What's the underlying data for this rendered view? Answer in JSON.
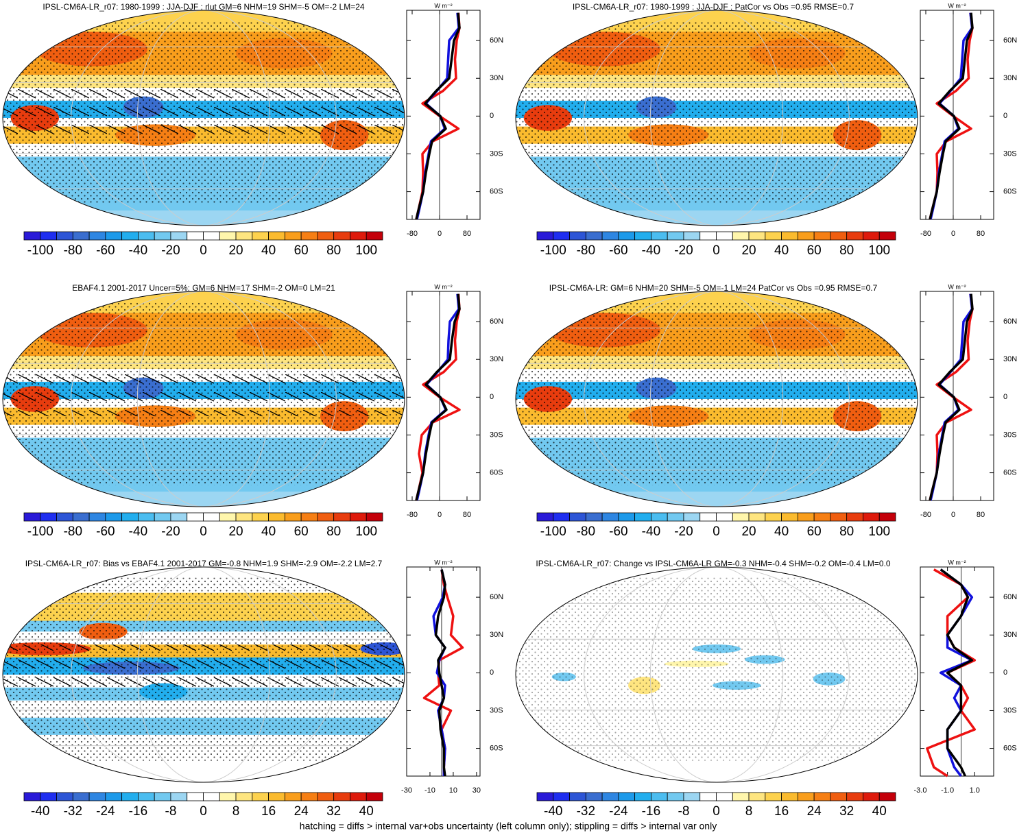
{
  "colors": [
    "#2a1ad8",
    "#1f2ef0",
    "#2d55d6",
    "#3a6ed0",
    "#2e86e2",
    "#1d9aea",
    "#22aeee",
    "#4bbdf0",
    "#72c9f0",
    "#9cd6f2",
    "#ffffff",
    "#ffffff",
    "#fff6ac",
    "#fee580",
    "#fdd24e",
    "#fbbb2e",
    "#f99e1c",
    "#f67f14",
    "#f05e10",
    "#e83c0e",
    "#de1a0c",
    "#c4000a"
  ],
  "note": "hatching = diffs > internal var+obs uncertainty (left column only); stippling = diffs > internal var only",
  "panels": [
    {
      "title": "IPSL-CM6A-LR_r07: 1980-1999 : JJA-DJF : rlut GM=6 NHM=19 SHM=-5 OM=-2 LM=24",
      "colorbar": {
        "clim": [
          -110,
          110
        ],
        "ticks": [
          -100,
          -80,
          -60,
          -40,
          -20,
          0,
          20,
          40,
          60,
          80,
          100
        ]
      },
      "profile": {
        "type": "line",
        "unit": "W m⁻²",
        "xlim": [
          -96,
          118
        ],
        "xticks": [
          -80,
          0,
          80
        ],
        "ylim": [
          -82,
          84
        ],
        "yticks": [
          {
            "value": 60,
            "label": "60N"
          },
          {
            "value": 30,
            "label": "30N"
          },
          0,
          {
            "value": -30,
            "label": "30S"
          },
          {
            "value": -60,
            "label": "60S"
          }
        ],
        "lat": [
          82,
          70,
          60,
          45,
          30,
          20,
          10,
          0,
          -10,
          -20,
          -30,
          -45,
          -60,
          -75,
          -82
        ],
        "series": [
          {
            "color": "#ee1111",
            "values": [
              55,
              58,
              50,
              45,
              48,
              10,
              -50,
              0,
              55,
              -20,
              -50,
              -48,
              -50,
              -62,
              -68
            ]
          },
          {
            "color": "#1111dd",
            "values": [
              52,
              56,
              28,
              25,
              22,
              -8,
              -40,
              2,
              15,
              -25,
              -32,
              -42,
              -48,
              -60,
              -66
            ]
          },
          {
            "color": "#000000",
            "values": [
              54,
              58,
              42,
              35,
              28,
              -10,
              -42,
              2,
              18,
              -22,
              -30,
              -40,
              -48,
              -62,
              -68
            ]
          }
        ]
      }
    },
    {
      "title": "IPSL-CM6A-LR_r07: 1980-1999 : JJA-DJF : PatCor vs Obs =0.95 RMSE=0.7",
      "colorbar": {
        "clim": [
          -110,
          110
        ],
        "ticks": [
          -100,
          -80,
          -60,
          -40,
          -20,
          0,
          20,
          40,
          60,
          80,
          100
        ]
      },
      "profile": {
        "type": "line",
        "unit": "W m⁻²",
        "xlim": [
          -96,
          118
        ],
        "xticks": [
          -80,
          0,
          80
        ],
        "ylim": [
          -82,
          84
        ],
        "yticks": [
          {
            "value": 60,
            "label": "60N"
          },
          {
            "value": 30,
            "label": "30N"
          },
          0,
          {
            "value": -30,
            "label": "30S"
          },
          {
            "value": -60,
            "label": "60S"
          }
        ],
        "lat": [
          82,
          70,
          60,
          45,
          30,
          20,
          10,
          0,
          -10,
          -20,
          -30,
          -45,
          -60,
          -75,
          -82
        ],
        "series": [
          {
            "color": "#ee1111",
            "values": [
              50,
              56,
              48,
              42,
              45,
              8,
              -48,
              0,
              52,
              -20,
              -48,
              -46,
              -48,
              -62,
              -68
            ]
          },
          {
            "color": "#1111dd",
            "values": [
              50,
              55,
              30,
              26,
              22,
              -8,
              -40,
              2,
              15,
              -25,
              -32,
              -42,
              -48,
              -60,
              -66
            ]
          },
          {
            "color": "#000000",
            "values": [
              52,
              56,
              40,
              34,
              28,
              -10,
              -42,
              2,
              18,
              -22,
              -30,
              -40,
              -48,
              -62,
              -68
            ]
          }
        ]
      }
    },
    {
      "title": "EBAF4.1 2001-2017 Uncer=5%: GM=6 NHM=17 SHM=-2 OM=0 LM=21",
      "colorbar": {
        "clim": [
          -110,
          110
        ],
        "ticks": [
          -100,
          -80,
          -60,
          -40,
          -20,
          0,
          20,
          40,
          60,
          80,
          100
        ]
      },
      "profile": {
        "type": "line",
        "unit": "W m⁻²",
        "xlim": [
          -96,
          118
        ],
        "xticks": [
          -80,
          0,
          80
        ],
        "ylim": [
          -82,
          84
        ],
        "yticks": [
          {
            "value": 60,
            "label": "60N"
          },
          {
            "value": 30,
            "label": "30N"
          },
          0,
          {
            "value": -30,
            "label": "30S"
          },
          {
            "value": -60,
            "label": "60S"
          }
        ],
        "lat": [
          82,
          70,
          60,
          45,
          30,
          20,
          10,
          0,
          -10,
          -20,
          -30,
          -45,
          -60,
          -75,
          -82
        ],
        "series": [
          {
            "color": "#ee1111",
            "values": [
              55,
              58,
              50,
              45,
              48,
              12,
              -48,
              0,
              58,
              -20,
              -52,
              -60,
              -50,
              -62,
              -68
            ]
          },
          {
            "color": "#1111dd",
            "values": [
              52,
              56,
              30,
              26,
              24,
              -6,
              -38,
              2,
              18,
              -24,
              -32,
              -42,
              -48,
              -60,
              -66
            ]
          },
          {
            "color": "#000000",
            "values": [
              54,
              58,
              44,
              36,
              30,
              -8,
              -40,
              2,
              20,
              -22,
              -30,
              -40,
              -48,
              -62,
              -68
            ]
          }
        ]
      }
    },
    {
      "title": "IPSL-CM6A-LR: GM=6 NHM=20 SHM=-5 OM=-1 LM=24 PatCor vs Obs =0.95 RMSE=0.7",
      "colorbar": {
        "clim": [
          -110,
          110
        ],
        "ticks": [
          -100,
          -80,
          -60,
          -40,
          -20,
          0,
          20,
          40,
          60,
          80,
          100
        ]
      },
      "profile": {
        "type": "line",
        "unit": "W m⁻²",
        "xlim": [
          -96,
          118
        ],
        "xticks": [
          -80,
          0,
          80
        ],
        "ylim": [
          -82,
          84
        ],
        "yticks": [
          {
            "value": 60,
            "label": "60N"
          },
          {
            "value": 30,
            "label": "30N"
          },
          0,
          {
            "value": -30,
            "label": "30S"
          },
          {
            "value": -60,
            "label": "60S"
          }
        ],
        "lat": [
          82,
          70,
          60,
          45,
          30,
          20,
          10,
          0,
          -10,
          -20,
          -30,
          -45,
          -60,
          -75,
          -82
        ],
        "series": [
          {
            "color": "#ee1111",
            "values": [
              50,
              56,
              48,
              42,
              45,
              8,
              -48,
              0,
              52,
              -20,
              -48,
              -46,
              -48,
              -62,
              -68
            ]
          },
          {
            "color": "#1111dd",
            "values": [
              50,
              55,
              30,
              26,
              22,
              -8,
              -40,
              2,
              15,
              -25,
              -32,
              -42,
              -48,
              -60,
              -66
            ]
          },
          {
            "color": "#000000",
            "values": [
              52,
              56,
              40,
              34,
              28,
              -10,
              -42,
              2,
              18,
              -22,
              -30,
              -40,
              -48,
              -62,
              -68
            ]
          }
        ]
      }
    },
    {
      "title": "IPSL-CM6A-LR_r07: Bias vs EBAF4.1 2001-2017 GM=-0.8 NHM=1.9 SHM=-2.9 OM=-2.2 LM=2.7",
      "colorbar": {
        "clim": [
          -44,
          44
        ],
        "ticks": [
          -40,
          -32,
          -24,
          -16,
          -8,
          0,
          8,
          16,
          24,
          32,
          40
        ]
      },
      "profile": {
        "type": "line",
        "unit": "W m⁻²",
        "xlim": [
          -30,
          33
        ],
        "xticks": [
          -30,
          -10,
          10,
          30
        ],
        "ylim": [
          -82,
          84
        ],
        "yticks": [
          {
            "value": 60,
            "label": "60N"
          },
          {
            "value": 30,
            "label": "30N"
          },
          0,
          {
            "value": -30,
            "label": "30S"
          },
          {
            "value": -60,
            "label": "60S"
          }
        ],
        "lat": [
          82,
          70,
          60,
          45,
          30,
          20,
          10,
          0,
          -10,
          -20,
          -30,
          -45,
          -60,
          -75,
          -82
        ],
        "series": [
          {
            "color": "#ee1111",
            "values": [
              0,
              2,
              5,
              10,
              8,
              18,
              -2,
              -3,
              -2,
              -15,
              8,
              0,
              3,
              2,
              2
            ]
          },
          {
            "color": "#1111dd",
            "values": [
              0,
              3,
              1,
              -7,
              -5,
              3,
              -2,
              -4,
              3,
              2,
              -3,
              0,
              3,
              2,
              2
            ]
          },
          {
            "color": "#000000",
            "values": [
              0,
              3,
              2,
              -3,
              -5,
              3,
              -3,
              -2,
              0,
              2,
              -2,
              -1,
              2,
              2,
              3
            ]
          }
        ]
      }
    },
    {
      "title": "IPSL-CM6A-LR_r07: Change vs IPSL-CM6A-LR GM=-0.3 NHM=-0.4 SHM=-0.2 OM=-0.4 LM=0.0",
      "colorbar": {
        "clim": [
          -44,
          44
        ],
        "ticks": [
          -40,
          -32,
          -24,
          -16,
          -8,
          0,
          8,
          16,
          24,
          32,
          40
        ]
      },
      "profile": {
        "type": "line",
        "unit": "W m⁻²",
        "xlim": [
          -3,
          2.4
        ],
        "xticks": [
          {
            "value": -3,
            "label": "-3.0"
          },
          {
            "value": -1,
            "label": "-1.0"
          },
          {
            "value": 1,
            "label": "1.0"
          }
        ],
        "ylim": [
          -82,
          84
        ],
        "yticks": [
          {
            "value": 60,
            "label": "60N"
          },
          {
            "value": 30,
            "label": "30N"
          },
          0,
          {
            "value": -30,
            "label": "30S"
          },
          {
            "value": -60,
            "label": "60S"
          }
        ],
        "lat": [
          82,
          70,
          60,
          45,
          30,
          20,
          10,
          0,
          -10,
          -20,
          -30,
          -45,
          -60,
          -75,
          -82
        ],
        "series": [
          {
            "color": "#ee1111",
            "values": [
              -2,
              0,
              0.5,
              -1,
              -1,
              -0.5,
              1,
              -1,
              0,
              0.5,
              0,
              1,
              -2.5,
              -2,
              -1
            ]
          },
          {
            "color": "#1111dd",
            "values": [
              -1.5,
              0,
              0.8,
              0,
              -1,
              -1,
              0.8,
              -1.5,
              0,
              -0.5,
              0,
              -1,
              -1,
              -0.5,
              0
            ]
          },
          {
            "color": "#000000",
            "values": [
              -1.5,
              0,
              0.5,
              0,
              -1,
              -0.5,
              0.8,
              -1,
              0,
              0,
              0,
              -1,
              -1,
              0,
              0.3
            ]
          }
        ]
      }
    }
  ]
}
